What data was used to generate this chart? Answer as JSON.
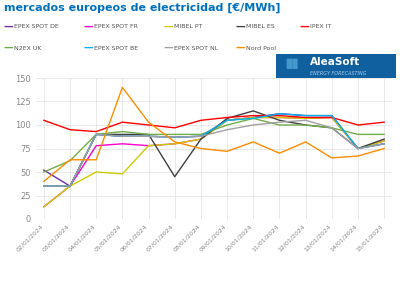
{
  "title": "mercados europeos de electricidad [€/MWh]",
  "title_color": "#0070c0",
  "x_labels": [
    "02/01/2024",
    "03/01/2024",
    "04/01/2024",
    "05/01/2024",
    "06/01/2024",
    "07/01/2024",
    "08/01/2024",
    "09/01/2024",
    "10/01/2024",
    "11/01/2024",
    "12/01/2024",
    "13/01/2024",
    "14/01/2024",
    "15/01/2024"
  ],
  "series": [
    {
      "name": "EPEX SPOT DE",
      "color": "#7030a0",
      "values": [
        52,
        35,
        90,
        88,
        88,
        87,
        88,
        105,
        108,
        112,
        110,
        110,
        75,
        80
      ]
    },
    {
      "name": "EPEX SPOT FR",
      "color": "#ff00cc",
      "values": [
        13,
        35,
        78,
        80,
        78,
        80,
        85,
        105,
        108,
        108,
        107,
        108,
        75,
        83
      ]
    },
    {
      "name": "MIBEL PT",
      "color": "#cccc00",
      "values": [
        13,
        35,
        50,
        48,
        78,
        80,
        85,
        105,
        108,
        108,
        107,
        108,
        75,
        83
      ]
    },
    {
      "name": "MIBEL ES",
      "color": "#404040",
      "values": [
        35,
        35,
        90,
        90,
        90,
        45,
        85,
        107,
        115,
        105,
        100,
        97,
        75,
        85
      ]
    },
    {
      "name": "IPEX IT",
      "color": "#ff0000",
      "values": [
        105,
        95,
        93,
        103,
        100,
        97,
        105,
        108,
        110,
        110,
        108,
        108,
        100,
        103
      ]
    },
    {
      "name": "N2EX UK",
      "color": "#70ad47",
      "values": [
        50,
        62,
        90,
        93,
        90,
        90,
        90,
        100,
        107,
        100,
        100,
        97,
        90,
        90
      ]
    },
    {
      "name": "EPEX SPOT BE",
      "color": "#00b0f0",
      "values": [
        35,
        35,
        90,
        88,
        88,
        87,
        88,
        105,
        107,
        112,
        110,
        110,
        75,
        80
      ]
    },
    {
      "name": "EPEX SPOT NL",
      "color": "#a0a0a0",
      "values": [
        35,
        35,
        90,
        88,
        88,
        87,
        88,
        95,
        100,
        103,
        105,
        97,
        75,
        80
      ]
    },
    {
      "name": "Nord Pool",
      "color": "#ff8c00",
      "values": [
        40,
        63,
        63,
        140,
        103,
        82,
        75,
        72,
        82,
        70,
        82,
        65,
        67,
        75
      ]
    }
  ],
  "ylim": [
    0,
    150
  ],
  "yticks": [
    0,
    25,
    50,
    75,
    100,
    125,
    150
  ],
  "background_color": "#ffffff",
  "grid_color": "#e0e0e0"
}
